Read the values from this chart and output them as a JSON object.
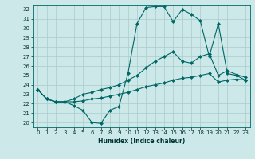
{
  "xlabel": "Humidex (Indice chaleur)",
  "bg_color": "#cce8e8",
  "grid_color": "#aacccc",
  "line_color": "#006666",
  "xlim": [
    -0.5,
    23.5
  ],
  "ylim": [
    19.5,
    32.5
  ],
  "xticks": [
    0,
    1,
    2,
    3,
    4,
    5,
    6,
    7,
    8,
    9,
    10,
    11,
    12,
    13,
    14,
    15,
    16,
    17,
    18,
    19,
    20,
    21,
    22,
    23
  ],
  "yticks": [
    20,
    21,
    22,
    23,
    24,
    25,
    26,
    27,
    28,
    29,
    30,
    31,
    32
  ],
  "line1_x": [
    0,
    1,
    2,
    3,
    4,
    5,
    6,
    7,
    8,
    9,
    10,
    11,
    12,
    13,
    14,
    15,
    16,
    17,
    18,
    19,
    20,
    21,
    22,
    23
  ],
  "line1_y": [
    23.5,
    22.5,
    22.2,
    22.2,
    21.8,
    21.3,
    20.0,
    19.9,
    21.3,
    21.7,
    25.2,
    30.5,
    32.2,
    32.3,
    32.3,
    30.7,
    32.0,
    31.5,
    30.8,
    27.0,
    30.5,
    25.2,
    25.0,
    24.5
  ],
  "line2_x": [
    0,
    1,
    2,
    3,
    4,
    5,
    6,
    7,
    8,
    9,
    10,
    11,
    12,
    13,
    14,
    15,
    16,
    17,
    18,
    19,
    20,
    21,
    22,
    23
  ],
  "line2_y": [
    23.5,
    22.5,
    22.2,
    22.2,
    22.5,
    23.0,
    23.2,
    23.5,
    23.7,
    24.0,
    24.5,
    25.0,
    25.8,
    26.5,
    27.0,
    27.5,
    26.5,
    26.3,
    27.0,
    27.3,
    25.0,
    25.5,
    25.1,
    24.8
  ],
  "line3_x": [
    0,
    1,
    2,
    3,
    4,
    5,
    6,
    7,
    8,
    9,
    10,
    11,
    12,
    13,
    14,
    15,
    16,
    17,
    18,
    19,
    20,
    21,
    22,
    23
  ],
  "line3_y": [
    23.5,
    22.5,
    22.2,
    22.2,
    22.2,
    22.3,
    22.5,
    22.6,
    22.8,
    23.0,
    23.2,
    23.5,
    23.8,
    24.0,
    24.2,
    24.5,
    24.7,
    24.8,
    25.0,
    25.2,
    24.3,
    24.5,
    24.6,
    24.5
  ]
}
